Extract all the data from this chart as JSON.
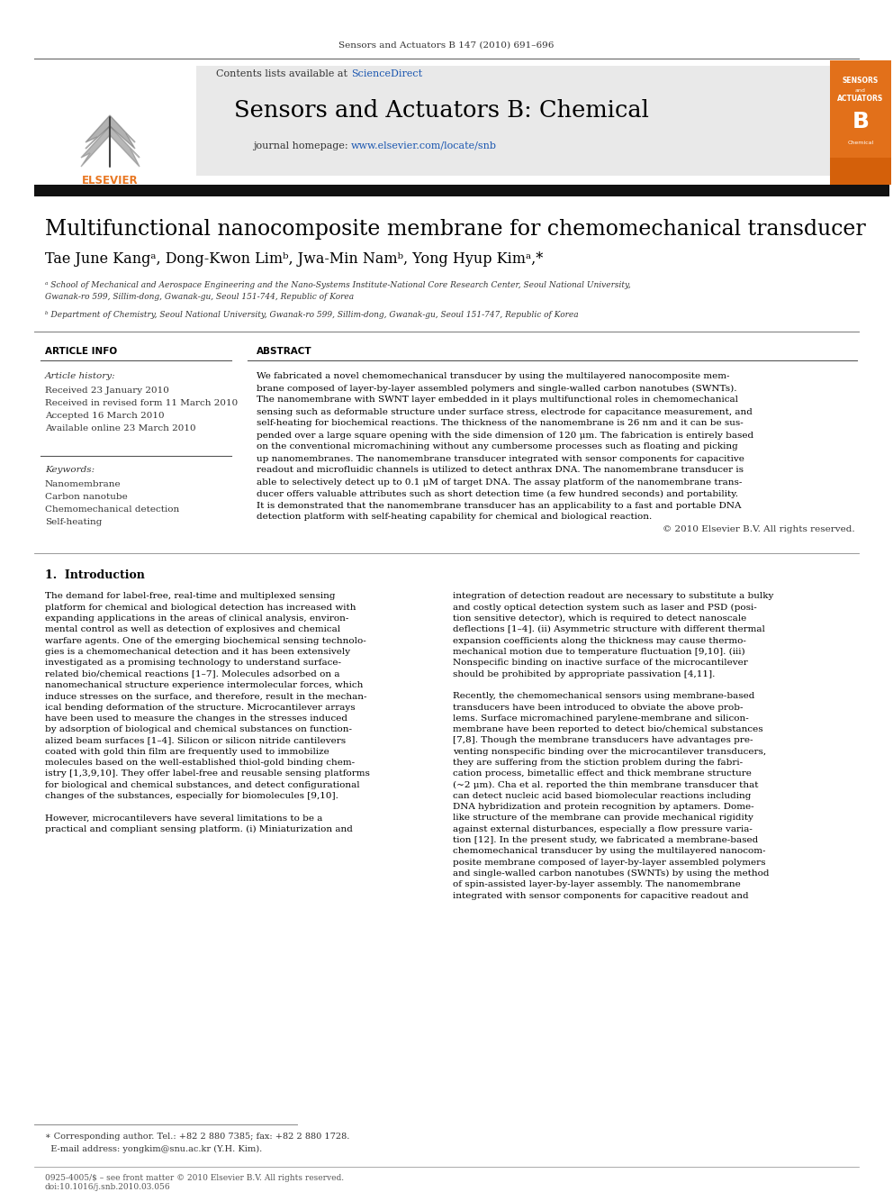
{
  "page_bg": "#ffffff",
  "top_journal_ref": "Sensors and Actuators B 147 (2010) 691–696",
  "header_bg": "#e8e8e8",
  "header_sciencedirect_color": "#1a56b0",
  "journal_title": "Sensors and Actuators B: Chemical",
  "journal_homepage_url_color": "#1a56b0",
  "article_title": "Multifunctional nanocomposite membrane for chemomechanical transducer",
  "affil_a": "ᵃ School of Mechanical and Aerospace Engineering and the Nano-Systems Institute-National Core Research Center, Seoul National University,\nGwanak-ro 599, Sillim-dong, Gwanak-gu, Seoul 151-744, Republic of Korea",
  "affil_b": "ᵇ Department of Chemistry, Seoul National University, Gwanak-ro 599, Sillim-dong, Gwanak-gu, Seoul 151-747, Republic of Korea",
  "section_article_info": "ARTICLE INFO",
  "article_history_label": "Article history:",
  "received": "Received 23 January 2010",
  "revised": "Received in revised form 11 March 2010",
  "accepted": "Accepted 16 March 2010",
  "available": "Available online 23 March 2010",
  "keywords_label": "Keywords:",
  "keywords": [
    "Nanomembrane",
    "Carbon nanotube",
    "Chemomechanical detection",
    "Self-heating"
  ],
  "section_abstract": "ABSTRACT",
  "abstract_lines": [
    "We fabricated a novel chemomechanical transducer by using the multilayered nanocomposite mem-",
    "brane composed of layer-by-layer assembled polymers and single-walled carbon nanotubes (SWNTs).",
    "The nanomembrane with SWNT layer embedded in it plays multifunctional roles in chemomechanical",
    "sensing such as deformable structure under surface stress, electrode for capacitance measurement, and",
    "self-heating for biochemical reactions. The thickness of the nanomembrane is 26 nm and it can be sus-",
    "pended over a large square opening with the side dimension of 120 μm. The fabrication is entirely based",
    "on the conventional micromachining without any cumbersome processes such as floating and picking",
    "up nanomembranes. The nanomembrane transducer integrated with sensor components for capacitive",
    "readout and microfluidic channels is utilized to detect anthrax DNA. The nanomembrane transducer is",
    "able to selectively detect up to 0.1 μM of target DNA. The assay platform of the nanomembrane trans-",
    "ducer offers valuable attributes such as short detection time (a few hundred seconds) and portability.",
    "It is demonstrated that the nanomembrane transducer has an applicability to a fast and portable DNA",
    "detection platform with self-heating capability for chemical and biological reaction.",
    "© 2010 Elsevier B.V. All rights reserved."
  ],
  "intro_title": "1.  Introduction",
  "left_intro_lines": [
    "The demand for label-free, real-time and multiplexed sensing",
    "platform for chemical and biological detection has increased with",
    "expanding applications in the areas of clinical analysis, environ-",
    "mental control as well as detection of explosives and chemical",
    "warfare agents. One of the emerging biochemical sensing technolo-",
    "gies is a chemomechanical detection and it has been extensively",
    "investigated as a promising technology to understand surface-",
    "related bio/chemical reactions [1–7]. Molecules adsorbed on a",
    "nanomechanical structure experience intermolecular forces, which",
    "induce stresses on the surface, and therefore, result in the mechan-",
    "ical bending deformation of the structure. Microcantilever arrays",
    "have been used to measure the changes in the stresses induced",
    "by adsorption of biological and chemical substances on function-",
    "alized beam surfaces [1–4]. Silicon or silicon nitride cantilevers",
    "coated with gold thin film are frequently used to immobilize",
    "molecules based on the well-established thiol-gold binding chem-",
    "istry [1,3,9,10]. They offer label-free and reusable sensing platforms",
    "for biological and chemical substances, and detect configurational",
    "changes of the substances, especially for biomolecules [9,10].",
    "",
    "However, microcantilevers have several limitations to be a",
    "practical and compliant sensing platform. (i) Miniaturization and"
  ],
  "right_intro_lines": [
    "integration of detection readout are necessary to substitute a bulky",
    "and costly optical detection system such as laser and PSD (posi-",
    "tion sensitive detector), which is required to detect nanoscale",
    "deflections [1–4]. (ii) Asymmetric structure with different thermal",
    "expansion coefficients along the thickness may cause thermo-",
    "mechanical motion due to temperature fluctuation [9,10]. (iii)",
    "Nonspecific binding on inactive surface of the microcantilever",
    "should be prohibited by appropriate passivation [4,11].",
    "",
    "Recently, the chemomechanical sensors using membrane-based",
    "transducers have been introduced to obviate the above prob-",
    "lems. Surface micromachined parylene-membrane and silicon-",
    "membrane have been reported to detect bio/chemical substances",
    "[7,8]. Though the membrane transducers have advantages pre-",
    "venting nonspecific binding over the microcantilever transducers,",
    "they are suffering from the stiction problem during the fabri-",
    "cation process, bimetallic effect and thick membrane structure",
    "(~2 μm). Cha et al. reported the thin membrane transducer that",
    "can detect nucleic acid based biomolecular reactions including",
    "DNA hybridization and protein recognition by aptamers. Dome-",
    "like structure of the membrane can provide mechanical rigidity",
    "against external disturbances, especially a flow pressure varia-",
    "tion [12]. In the present study, we fabricated a membrane-based",
    "chemomechanical transducer by using the multilayered nanocom-",
    "posite membrane composed of layer-by-layer assembled polymers",
    "and single-walled carbon nanotubes (SWNTs) by using the method",
    "of spin-assisted layer-by-layer assembly. The nanomembrane",
    "integrated with sensor components for capacitive readout and"
  ],
  "footnote_line1": "∗ Corresponding author. Tel.: +82 2 880 7385; fax: +82 2 880 1728.",
  "footnote_line2": "  E-mail address: yongkim@snu.ac.kr (Y.H. Kim).",
  "footer_line1": "0925-4005/$ – see front matter © 2010 Elsevier B.V. All rights reserved.",
  "footer_line2": "doi:10.1016/j.snb.2010.03.056",
  "elsevier_color": "#e87722"
}
